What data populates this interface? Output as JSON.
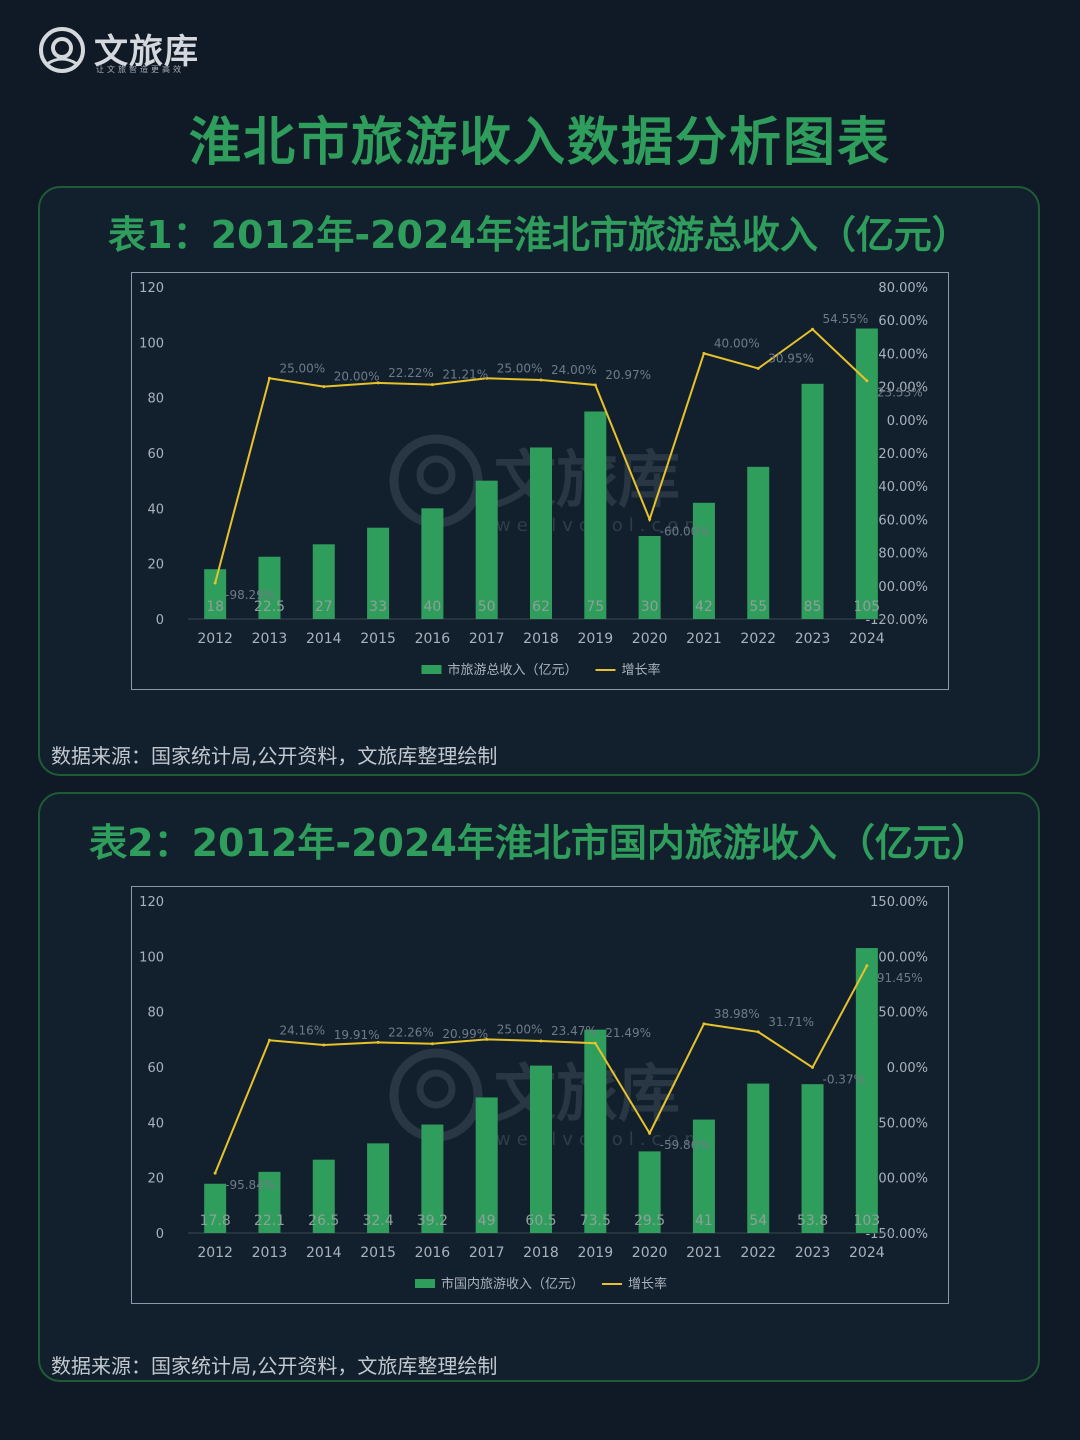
{
  "brand": {
    "name": "文旅库",
    "slogan": "让文旅智造更高效",
    "watermark_name": "文旅库",
    "watermark_url": "wenlvcool.com"
  },
  "page_title": "淮北市旅游收入数据分析图表",
  "colors": {
    "bar": "#2f9e5c",
    "line": "#e7c22b",
    "title": "#2f9e5c",
    "background": "#0f1a26"
  },
  "charts": [
    {
      "title": "表1：2012年-2024年淮北市旅游总收入（亿元）",
      "source": "数据来源：国家统计局,公开资料，文旅库整理绘制"
    },
    {
      "title": "表2：2012年-2024年淮北市国内旅游收入（亿元）",
      "source": "数据来源：国家统计局,公开资料，文旅库整理绘制"
    }
  ],
  "chart_data": [
    {
      "type": "bar",
      "categories": [
        "2012",
        "2013",
        "2014",
        "2015",
        "2016",
        "2017",
        "2018",
        "2019",
        "2020",
        "2021",
        "2022",
        "2023",
        "2024"
      ],
      "series": [
        {
          "name": "市旅游总收入（亿元）",
          "type": "bar",
          "axis": "left",
          "values": [
            18,
            22.5,
            27,
            33,
            40,
            50,
            62,
            75,
            30,
            42,
            55,
            85,
            105
          ],
          "labels": [
            "18",
            "22.5",
            "27",
            "33",
            "40",
            "50",
            "62",
            "75",
            "30",
            "42",
            "55",
            "85",
            "105"
          ]
        },
        {
          "name": "增长率",
          "type": "line",
          "axis": "right",
          "values": [
            -98.29,
            25.0,
            20.0,
            22.22,
            21.21,
            25.0,
            24.0,
            20.97,
            -60.0,
            40.0,
            30.95,
            54.55,
            23.53
          ],
          "labels": [
            "-98.29%",
            "25.00%",
            "20.00%",
            "22.22%",
            "21.21%",
            "25.00%",
            "24.00%",
            "20.97%",
            "-60.00%",
            "40.00%",
            "30.95%",
            "54.55%",
            "23.53%"
          ]
        }
      ],
      "ylim": [
        0,
        120
      ],
      "yticks": [
        "0",
        "20",
        "40",
        "60",
        "80",
        "100",
        "120"
      ],
      "y2lim": [
        -120,
        80
      ],
      "y2ticks": [
        "-120.00%",
        "-100.00%",
        "-80.00%",
        "-60.00%",
        "-40.00%",
        "-20.00%",
        "0.00%",
        "20.00%",
        "40.00%",
        "60.00%",
        "80.00%"
      ],
      "legend": "bottom"
    },
    {
      "type": "bar",
      "categories": [
        "2012",
        "2013",
        "2014",
        "2015",
        "2016",
        "2017",
        "2018",
        "2019",
        "2020",
        "2021",
        "2022",
        "2023",
        "2024"
      ],
      "series": [
        {
          "name": "市国内旅游收入（亿元）",
          "type": "bar",
          "axis": "left",
          "values": [
            17.8,
            22.1,
            26.5,
            32.4,
            39.2,
            49,
            60.5,
            73.5,
            29.5,
            41,
            54,
            53.8,
            103
          ],
          "labels": [
            "17.8",
            "22.1",
            "26.5",
            "32.4",
            "39.2",
            "49",
            "60.5",
            "73.5",
            "29.5",
            "41",
            "54",
            "53.8",
            "103"
          ]
        },
        {
          "name": "增长率",
          "type": "line",
          "axis": "right",
          "values": [
            -95.84,
            24.16,
            19.91,
            22.26,
            20.99,
            25.0,
            23.47,
            21.49,
            -59.86,
            38.98,
            31.71,
            -0.37,
            91.45
          ],
          "labels": [
            "-95.84%",
            "24.16%",
            "19.91%",
            "22.26%",
            "20.99%",
            "25.00%",
            "23.47%",
            "21.49%",
            "-59.86%",
            "38.98%",
            "31.71%",
            "-0.37%",
            "91.45%"
          ]
        }
      ],
      "ylim": [
        0,
        120
      ],
      "yticks": [
        "0",
        "20",
        "40",
        "60",
        "80",
        "100",
        "120"
      ],
      "y2lim": [
        -150,
        150
      ],
      "y2ticks": [
        "-150.00%",
        "-100.00%",
        "-50.00%",
        "0.00%",
        "50.00%",
        "100.00%",
        "150.00%"
      ],
      "legend": "bottom"
    }
  ]
}
